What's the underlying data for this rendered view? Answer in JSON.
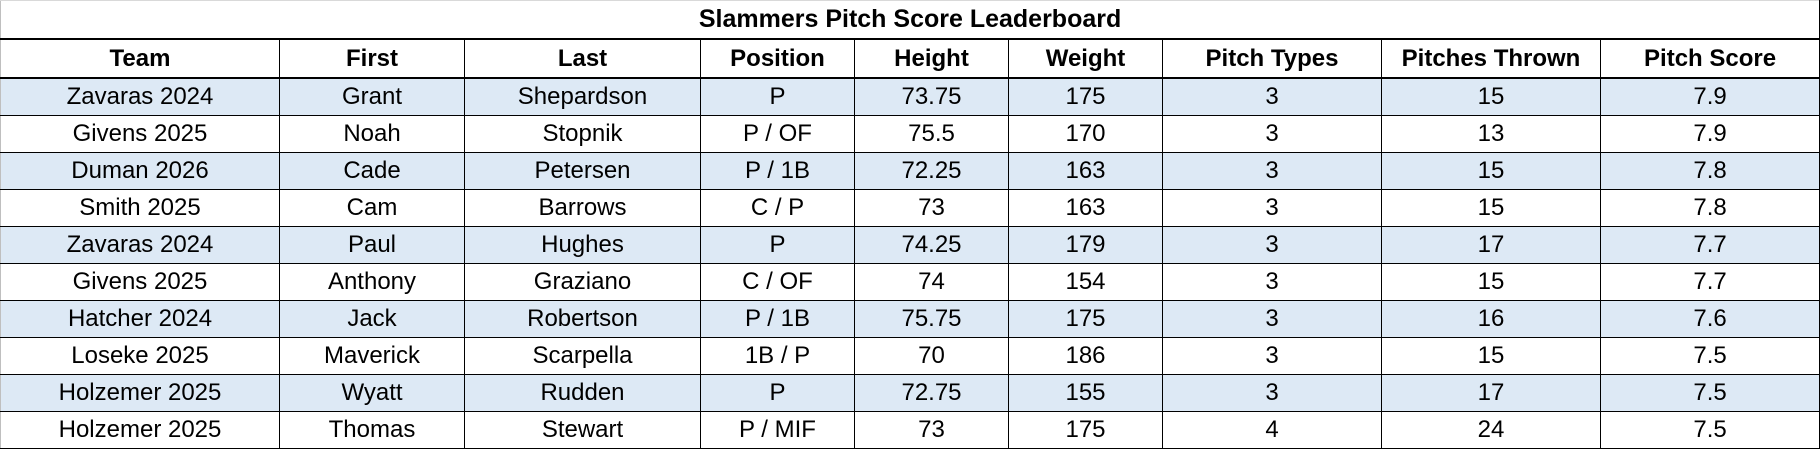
{
  "title": "Slammers Pitch Score Leaderboard",
  "colors": {
    "row_shade": "#dde9f5",
    "border": "#000000"
  },
  "columns": [
    "Team",
    "First",
    "Last",
    "Position",
    "Height",
    "Weight",
    "Pitch Types",
    "Pitches Thrown",
    "Pitch Score"
  ],
  "rows": [
    [
      "Zavaras 2024",
      "Grant",
      "Shepardson",
      "P",
      "73.75",
      "175",
      "3",
      "15",
      "7.9"
    ],
    [
      "Givens 2025",
      "Noah",
      "Stopnik",
      "P / OF",
      "75.5",
      "170",
      "3",
      "13",
      "7.9"
    ],
    [
      "Duman 2026",
      "Cade",
      "Petersen",
      "P / 1B",
      "72.25",
      "163",
      "3",
      "15",
      "7.8"
    ],
    [
      "Smith 2025",
      "Cam",
      "Barrows",
      "C / P",
      "73",
      "163",
      "3",
      "15",
      "7.8"
    ],
    [
      "Zavaras 2024",
      "Paul",
      "Hughes",
      "P",
      "74.25",
      "179",
      "3",
      "17",
      "7.7"
    ],
    [
      "Givens 2025",
      "Anthony",
      "Graziano",
      "C / OF",
      "74",
      "154",
      "3",
      "15",
      "7.7"
    ],
    [
      "Hatcher 2024",
      "Jack",
      "Robertson",
      "P / 1B",
      "75.75",
      "175",
      "3",
      "16",
      "7.6"
    ],
    [
      "Loseke 2025",
      "Maverick",
      "Scarpella",
      "1B / P",
      "70",
      "186",
      "3",
      "15",
      "7.5"
    ],
    [
      "Holzemer 2025",
      "Wyatt",
      "Rudden",
      "P",
      "72.75",
      "155",
      "3",
      "17",
      "7.5"
    ],
    [
      "Holzemer 2025",
      "Thomas",
      "Stewart",
      "P / MIF",
      "73",
      "175",
      "4",
      "24",
      "7.5"
    ]
  ]
}
